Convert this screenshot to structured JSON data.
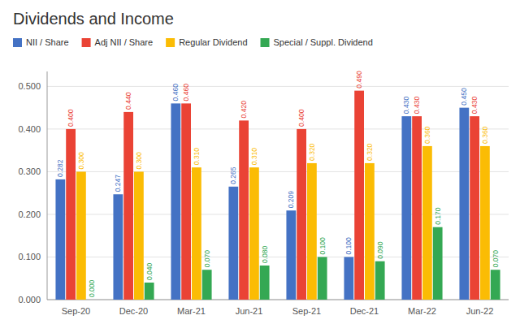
{
  "chart_data": {
    "type": "bar",
    "title": "Dividends and Income",
    "categories": [
      "Sep-20",
      "Dec-20",
      "Mar-21",
      "Jun-21",
      "Sep-21",
      "Dec-21",
      "Mar-22",
      "Jun-22"
    ],
    "series": [
      {
        "name": "NII / Share",
        "color": "#4472C4",
        "values": [
          0.282,
          0.247,
          0.46,
          0.265,
          0.209,
          0.1,
          0.43,
          0.45
        ],
        "value_labels": [
          "0.282",
          "0.247",
          "0.460",
          "0.265",
          "0.209",
          "0.100",
          "0.430",
          "0.450"
        ]
      },
      {
        "name": "Adj NII / Share",
        "color": "#EA4335",
        "values": [
          0.4,
          0.44,
          0.46,
          0.42,
          0.4,
          0.49,
          0.43,
          0.43
        ],
        "value_labels": [
          "0.400",
          "0.440",
          "0.460",
          "0.420",
          "0.400",
          "0.490",
          "0.430",
          "0.430"
        ]
      },
      {
        "name": "Regular Dividend",
        "color": "#FBBC04",
        "values": [
          0.3,
          0.3,
          0.31,
          0.31,
          0.32,
          0.32,
          0.36,
          0.36
        ],
        "value_labels": [
          "0.300",
          "0.300",
          "0.310",
          "0.310",
          "0.320",
          "0.320",
          "0.360",
          "0.360"
        ]
      },
      {
        "name": "Special / Suppl. Dividend",
        "color": "#34A853",
        "values": [
          0.0,
          0.04,
          0.07,
          0.08,
          0.1,
          0.09,
          0.17,
          0.07
        ],
        "value_labels": [
          "0.000",
          "0.040",
          "0.070",
          "0.080",
          "0.100",
          "0.090",
          "0.170",
          "0.070"
        ]
      }
    ],
    "ylim": [
      0.0,
      0.535
    ],
    "yticks": [
      {
        "value": 0.0,
        "label": "0.000"
      },
      {
        "value": 0.1,
        "label": "0.100"
      },
      {
        "value": 0.2,
        "label": "0.200"
      },
      {
        "value": 0.3,
        "label": "0.300"
      },
      {
        "value": 0.4,
        "label": "0.400"
      },
      {
        "value": 0.5,
        "label": "0.500"
      }
    ],
    "grid": true,
    "legend": "top-left",
    "data_labels": true
  }
}
